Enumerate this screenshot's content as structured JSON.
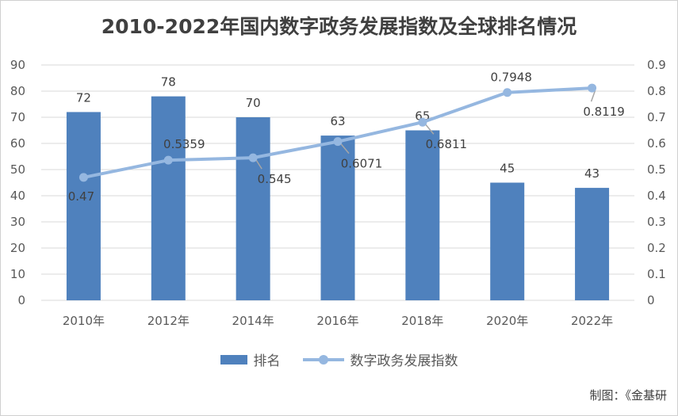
{
  "chart_data": {
    "type": "bar+line",
    "title": "2010-2022年国内数字政务发展指数及全球排名情况",
    "categories": [
      "2010年",
      "2012年",
      "2014年",
      "2016年",
      "2018年",
      "2020年",
      "2022年"
    ],
    "series": [
      {
        "name": "排名",
        "type": "bar",
        "axis": "left",
        "color": "#4f81bd",
        "values": [
          72,
          78,
          70,
          63,
          65,
          45,
          43
        ],
        "labels": [
          "72",
          "78",
          "70",
          "63",
          "65",
          "45",
          "43"
        ]
      },
      {
        "name": "数字政务发展指数",
        "type": "line",
        "axis": "right",
        "color": "#95b7e0",
        "values": [
          0.47,
          0.5359,
          0.545,
          0.6071,
          0.6811,
          0.7948,
          0.8119
        ],
        "labels": [
          "0.47",
          "0.5359",
          "0.545",
          "0.6071",
          "0.6811",
          "0.7948",
          "0.8119"
        ]
      }
    ],
    "y_left": {
      "min": 0,
      "max": 90,
      "ticks": [
        "0",
        "10",
        "20",
        "30",
        "40",
        "50",
        "60",
        "70",
        "80",
        "90"
      ]
    },
    "y_right": {
      "min": 0,
      "max": 0.9,
      "ticks": [
        "0",
        "0.1",
        "0.2",
        "0.3",
        "0.4",
        "0.5",
        "0.6",
        "0.7",
        "0.8",
        "0.9"
      ]
    },
    "grid": true,
    "legend_position": "bottom",
    "source": "制图：《金基研"
  }
}
